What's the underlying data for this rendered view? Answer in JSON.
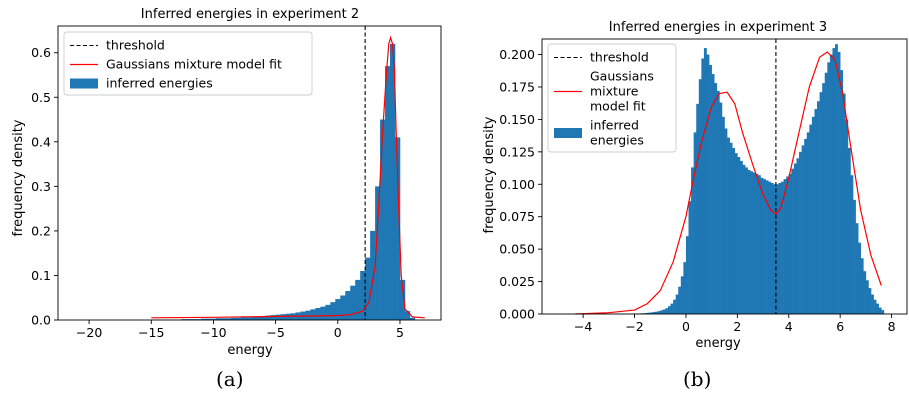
{
  "colors": {
    "histogram": "#1f77b4",
    "gmm_fit": "#ff0000",
    "threshold": "#000000"
  },
  "captions": {
    "a": "(a)",
    "b": "(b)"
  },
  "chart_data": [
    {
      "type": "histogram",
      "title": "Inferred energies in experiment 2",
      "xlabel": "energy",
      "ylabel": "frequency density",
      "xlim": [
        -22.5,
        8.3
      ],
      "ylim": [
        0,
        0.66
      ],
      "xticks": [
        -20,
        -15,
        -10,
        -5,
        0,
        5
      ],
      "yticks": [
        0.0,
        0.1,
        0.2,
        0.3,
        0.4,
        0.5,
        0.6
      ],
      "ytick_labels": [
        "0.0",
        "0.1",
        "0.2",
        "0.3",
        "0.4",
        "0.5",
        "0.6"
      ],
      "legend": {
        "placement": "upper-left",
        "entries": [
          {
            "label": "threshold",
            "style": "dashed-line"
          },
          {
            "label": "Gaussians mixture model fit",
            "style": "line"
          },
          {
            "label": "inferred energies",
            "style": "patch"
          }
        ]
      },
      "threshold": 2.2,
      "histogram": {
        "bin_width": 0.4,
        "x": [
          -15,
          -14.6,
          -14.2,
          -13.8,
          -13.4,
          -13,
          -12.6,
          -12.2,
          -11.8,
          -11.4,
          -11,
          -10.6,
          -10.2,
          -9.8,
          -9.4,
          -9,
          -8.6,
          -8.2,
          -7.8,
          -7.4,
          -7,
          -6.6,
          -6.2,
          -5.8,
          -5.4,
          -5,
          -4.6,
          -4.2,
          -3.8,
          -3.4,
          -3,
          -2.6,
          -2.2,
          -1.8,
          -1.4,
          -1,
          -0.6,
          -0.2,
          0.2,
          0.6,
          1,
          1.4,
          1.8,
          2.2,
          2.6,
          3,
          3.4,
          3.8,
          4.2,
          4.6,
          5,
          5.4,
          5.8
        ],
        "values": [
          0.001,
          0.001,
          0.001,
          0.001,
          0.001,
          0.001,
          0.002,
          0.002,
          0.002,
          0.002,
          0.003,
          0.003,
          0.003,
          0.004,
          0.004,
          0.004,
          0.005,
          0.005,
          0.006,
          0.006,
          0.007,
          0.008,
          0.009,
          0.01,
          0.011,
          0.012,
          0.013,
          0.014,
          0.015,
          0.017,
          0.019,
          0.021,
          0.024,
          0.027,
          0.03,
          0.034,
          0.04,
          0.047,
          0.055,
          0.065,
          0.077,
          0.09,
          0.11,
          0.14,
          0.2,
          0.3,
          0.45,
          0.57,
          0.62,
          0.41,
          0.09,
          0.02,
          0.005
        ]
      },
      "gmm_fit": {
        "x": [
          -15,
          -10,
          -5,
          -2,
          0,
          1,
          2,
          2.5,
          3,
          3.3,
          3.6,
          3.9,
          4.1,
          4.25,
          4.4,
          4.55,
          4.7,
          4.9,
          5.1,
          5.4,
          6,
          7
        ],
        "y": [
          0.005,
          0.006,
          0.008,
          0.009,
          0.01,
          0.012,
          0.02,
          0.04,
          0.12,
          0.26,
          0.42,
          0.55,
          0.62,
          0.634,
          0.62,
          0.56,
          0.42,
          0.25,
          0.1,
          0.025,
          0.007,
          0.005
        ]
      }
    },
    {
      "type": "histogram",
      "title": "Inferred energies in experiment 3",
      "xlabel": "energy",
      "ylabel": "frequency density",
      "xlim": [
        -5.6,
        8.6
      ],
      "ylim": [
        0,
        0.212
      ],
      "xticks": [
        -4,
        -2,
        0,
        2,
        4,
        6,
        8
      ],
      "yticks": [
        0.0,
        0.025,
        0.05,
        0.075,
        0.1,
        0.125,
        0.15,
        0.175,
        0.2
      ],
      "ytick_labels": [
        "0.000",
        "0.025",
        "0.050",
        "0.075",
        "0.100",
        "0.125",
        "0.150",
        "0.175",
        "0.200"
      ],
      "legend": {
        "placement": "upper-left",
        "entries": [
          {
            "label": "threshold",
            "style": "dashed-line"
          },
          {
            "label": "Gaussians\n mixture\n model fit",
            "style": "line"
          },
          {
            "label": "inferred\n energies",
            "style": "patch"
          }
        ]
      },
      "threshold": 3.5,
      "histogram": {
        "bin_width": 0.1,
        "x": [
          -4.1,
          -4.0,
          -3.9,
          -3.8,
          -3.7,
          -3.6,
          -3.5,
          -3.4,
          -3.3,
          -3.2,
          -3.1,
          -3.0,
          -2.9,
          -2.8,
          -2.7,
          -2.6,
          -2.5,
          -2.4,
          -2.3,
          -2.2,
          -2.1,
          -2.0,
          -1.9,
          -1.8,
          -1.7,
          -1.6,
          -1.5,
          -1.4,
          -1.3,
          -1.2,
          -1.1,
          -1.0,
          -0.9,
          -0.8,
          -0.7,
          -0.6,
          -0.5,
          -0.4,
          -0.3,
          -0.2,
          -0.1,
          0.0,
          0.1,
          0.2,
          0.3,
          0.4,
          0.5,
          0.6,
          0.7,
          0.8,
          0.9,
          1.0,
          1.1,
          1.2,
          1.3,
          1.4,
          1.5,
          1.6,
          1.7,
          1.8,
          1.9,
          2.0,
          2.1,
          2.2,
          2.3,
          2.4,
          2.5,
          2.6,
          2.7,
          2.8,
          2.9,
          3.0,
          3.1,
          3.2,
          3.3,
          3.4,
          3.5,
          3.6,
          3.7,
          3.8,
          3.9,
          4.0,
          4.1,
          4.2,
          4.3,
          4.4,
          4.5,
          4.6,
          4.7,
          4.8,
          4.9,
          5.0,
          5.1,
          5.2,
          5.3,
          5.4,
          5.5,
          5.6,
          5.7,
          5.8,
          5.9,
          6.0,
          6.1,
          6.2,
          6.3,
          6.4,
          6.5,
          6.6,
          6.7,
          6.8,
          6.9,
          7.0,
          7.1,
          7.2,
          7.3,
          7.4,
          7.5,
          7.6
        ],
        "values": [
          0.0002,
          0.0002,
          0.0002,
          0.0002,
          0.0002,
          0.0002,
          0.0002,
          0.0002,
          0.0002,
          0.0002,
          0.0002,
          0.0002,
          0.0002,
          0.0002,
          0.0002,
          0.0002,
          0.0002,
          0.0002,
          0.0002,
          0.0002,
          0.0003,
          0.0003,
          0.0004,
          0.0005,
          0.0006,
          0.0008,
          0.001,
          0.0012,
          0.0015,
          0.0018,
          0.0022,
          0.0028,
          0.0035,
          0.0045,
          0.006,
          0.008,
          0.011,
          0.015,
          0.021,
          0.029,
          0.04,
          0.06,
          0.087,
          0.113,
          0.14,
          0.162,
          0.181,
          0.197,
          0.205,
          0.2,
          0.192,
          0.185,
          0.178,
          0.172,
          0.163,
          0.152,
          0.143,
          0.136,
          0.132,
          0.128,
          0.124,
          0.121,
          0.118,
          0.115,
          0.113,
          0.111,
          0.11,
          0.109,
          0.108,
          0.107,
          0.105,
          0.104,
          0.103,
          0.102,
          0.101,
          0.1,
          0.1,
          0.101,
          0.102,
          0.104,
          0.106,
          0.108,
          0.112,
          0.116,
          0.12,
          0.125,
          0.13,
          0.135,
          0.14,
          0.146,
          0.152,
          0.158,
          0.164,
          0.171,
          0.178,
          0.186,
          0.194,
          0.2,
          0.205,
          0.208,
          0.202,
          0.188,
          0.17,
          0.15,
          0.128,
          0.107,
          0.088,
          0.07,
          0.055,
          0.043,
          0.033,
          0.026,
          0.02,
          0.015,
          0.011,
          0.008,
          0.005,
          0.003
        ]
      },
      "gmm_fit": {
        "x": [
          -4.3,
          -3,
          -2,
          -1.5,
          -1,
          -0.5,
          0,
          0.3,
          0.6,
          1.0,
          1.3,
          1.6,
          1.9,
          2.2,
          2.6,
          3.0,
          3.3,
          3.5,
          3.7,
          4.0,
          4.4,
          4.8,
          5.2,
          5.5,
          5.8,
          6.1,
          6.4,
          6.8,
          7.2,
          7.6
        ],
        "y": [
          0,
          0.001,
          0.003,
          0.008,
          0.018,
          0.04,
          0.075,
          0.105,
          0.132,
          0.16,
          0.17,
          0.171,
          0.162,
          0.14,
          0.115,
          0.092,
          0.08,
          0.077,
          0.082,
          0.105,
          0.14,
          0.175,
          0.198,
          0.202,
          0.196,
          0.17,
          0.13,
          0.08,
          0.045,
          0.022
        ]
      }
    }
  ]
}
